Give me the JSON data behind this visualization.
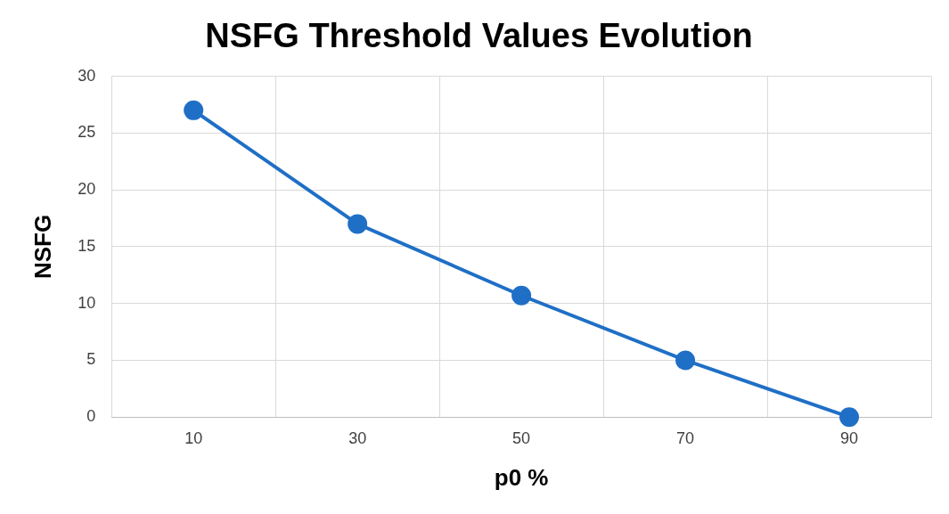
{
  "chart_data": {
    "type": "line",
    "title": "NSFG Threshold Values Evolution",
    "xlabel": "p0 %",
    "ylabel": "NSFG",
    "categories": [
      "10",
      "30",
      "50",
      "70",
      "90"
    ],
    "series": [
      {
        "color": "#1f6fc6",
        "values": [
          27,
          17,
          10.7,
          5,
          0
        ]
      }
    ],
    "ylim": [
      0,
      30
    ],
    "yticks": [
      0,
      5,
      10,
      15,
      20,
      25,
      30
    ],
    "grid": true,
    "legend": false,
    "marker": "circle",
    "line_style": "solid"
  }
}
